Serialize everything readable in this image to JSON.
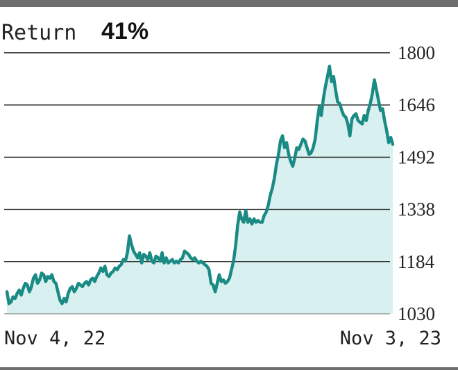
{
  "header": {
    "label": "Return",
    "value": "41%"
  },
  "colors": {
    "line": "#1a8a84",
    "fill": "#d9f0f0",
    "grid": "#111111",
    "frame": "#6e6e6e"
  },
  "chart_data": {
    "type": "area",
    "x_start_label": "Nov 4, 22",
    "x_end_label": "Nov 3, 23",
    "yticks": [
      1800,
      1646,
      1492,
      1338,
      1184,
      1030
    ],
    "ylim": [
      1030,
      1800
    ],
    "grid": true,
    "values": [
      1095,
      1060,
      1065,
      1080,
      1075,
      1090,
      1100,
      1085,
      1105,
      1120,
      1115,
      1095,
      1110,
      1135,
      1145,
      1120,
      1130,
      1150,
      1145,
      1125,
      1140,
      1135,
      1145,
      1125,
      1120,
      1095,
      1070,
      1060,
      1075,
      1065,
      1090,
      1105,
      1110,
      1095,
      1105,
      1120,
      1115,
      1110,
      1120,
      1125,
      1115,
      1130,
      1135,
      1125,
      1140,
      1150,
      1165,
      1155,
      1170,
      1145,
      1140,
      1150,
      1155,
      1165,
      1160,
      1170,
      1175,
      1190,
      1185,
      1210,
      1260,
      1235,
      1215,
      1205,
      1195,
      1210,
      1180,
      1205,
      1200,
      1190,
      1210,
      1185,
      1180,
      1200,
      1195,
      1185,
      1210,
      1180,
      1195,
      1180,
      1185,
      1190,
      1180,
      1185,
      1180,
      1190,
      1195,
      1215,
      1210,
      1205,
      1195,
      1190,
      1195,
      1185,
      1180,
      1185,
      1180,
      1175,
      1170,
      1160,
      1120,
      1115,
      1095,
      1120,
      1145,
      1125,
      1130,
      1120,
      1125,
      1135,
      1160,
      1185,
      1230,
      1290,
      1330,
      1310,
      1300,
      1335,
      1300,
      1310,
      1295,
      1310,
      1300,
      1305,
      1300,
      1300,
      1320,
      1330,
      1350,
      1380,
      1400,
      1430,
      1470,
      1500,
      1540,
      1555,
      1520,
      1535,
      1500,
      1480,
      1465,
      1490,
      1520,
      1515,
      1530,
      1545,
      1540,
      1520,
      1500,
      1505,
      1520,
      1545,
      1600,
      1640,
      1615,
      1665,
      1700,
      1730,
      1760,
      1715,
      1730,
      1690,
      1655,
      1650,
      1630,
      1615,
      1610,
      1590,
      1555,
      1605,
      1615,
      1620,
      1600,
      1595,
      1590,
      1615,
      1600,
      1630,
      1650,
      1680,
      1720,
      1690,
      1660,
      1630,
      1635,
      1600,
      1570,
      1535,
      1550,
      1530
    ]
  }
}
